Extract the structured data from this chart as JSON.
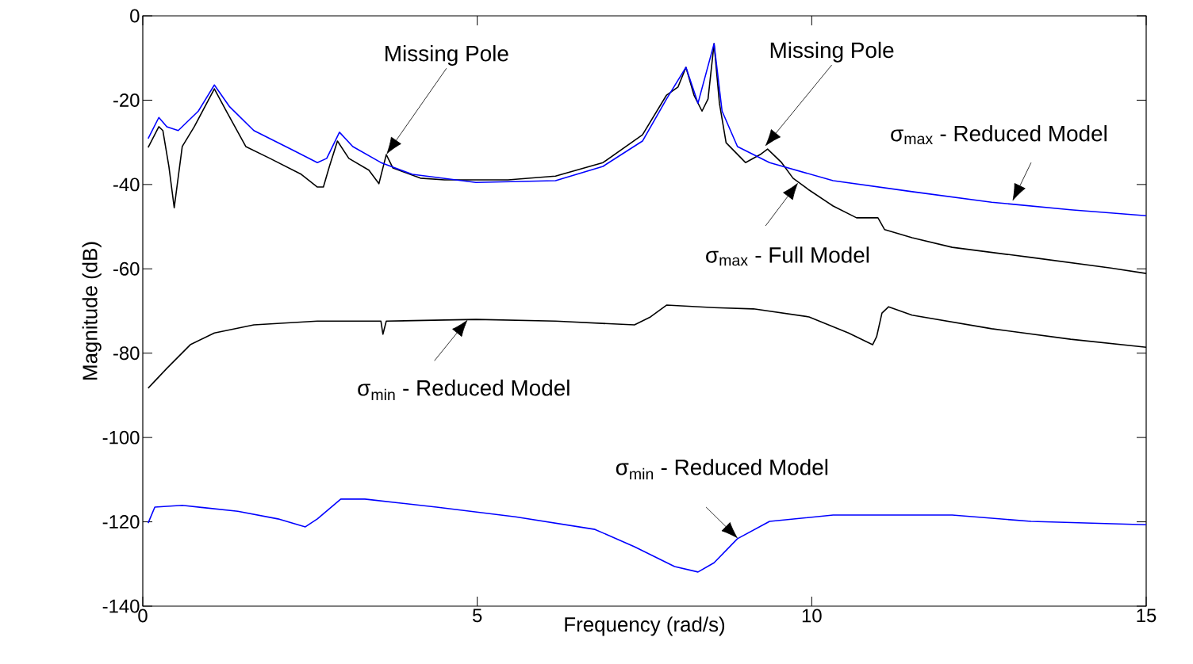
{
  "chart_data": {
    "type": "line",
    "xlabel": "Frequency (rad/s)",
    "ylabel": "Magnitude (dB)",
    "xlim": [
      0,
      15
    ],
    "ylim": [
      -140,
      0
    ],
    "xticks": [
      0,
      5,
      10,
      15
    ],
    "yticks": [
      -140,
      -120,
      -100,
      -80,
      -60,
      -40,
      -20,
      0
    ],
    "grid": false,
    "marker": "none",
    "line_style": "solid",
    "series": [
      {
        "color": "#000000",
        "x": [
          0.08,
          0.24,
          0.3,
          0.39,
          0.47,
          0.59,
          0.77,
          1.07,
          1.25,
          1.54,
          1.9,
          2.37,
          2.61,
          2.7,
          2.79,
          2.91,
          3.08,
          3.38,
          3.53,
          3.64,
          3.74,
          4.15,
          4.51,
          4.98,
          5.46,
          6.17,
          6.88,
          7.47,
          7.83,
          8.0,
          8.12,
          8.24,
          8.36,
          8.45,
          8.54,
          8.62,
          8.72,
          9.01,
          9.23,
          9.34,
          9.55,
          9.72,
          9.96,
          10.32,
          10.67,
          10.99,
          11.09,
          11.5,
          12.1,
          13.28,
          14.47,
          15
        ],
        "values": [
          -31.2,
          -26.3,
          -27.2,
          -35.7,
          -45.5,
          -31,
          -26.3,
          -17.3,
          -22.6,
          -31,
          -33.8,
          -37.6,
          -40.6,
          -40.6,
          -35.7,
          -29.7,
          -33.8,
          -36.6,
          -39.8,
          -32.9,
          -36.1,
          -38.5,
          -38.9,
          -38.9,
          -38.9,
          -38,
          -34.8,
          -28.2,
          -18.8,
          -16.9,
          -12.2,
          -18.8,
          -22.6,
          -19.7,
          -6.6,
          -20.7,
          -30.1,
          -34.8,
          -32.9,
          -31.6,
          -34.8,
          -38.5,
          -41.3,
          -45.1,
          -47.9,
          -47.9,
          -50.7,
          -52.6,
          -54.9,
          -57.3,
          -59.8,
          -61.1
        ]
      },
      {
        "color": "#0000ff",
        "x": [
          0.08,
          0.24,
          0.36,
          0.53,
          0.83,
          1.07,
          1.3,
          1.66,
          2.25,
          2.61,
          2.75,
          2.94,
          3.14,
          3.56,
          4.03,
          4.98,
          6.17,
          6.88,
          7.47,
          7.83,
          8.12,
          8.3,
          8.54,
          8.66,
          8.89,
          9.37,
          10.32,
          11.5,
          12.69,
          13.87,
          15
        ],
        "values": [
          -29.1,
          -24.1,
          -26.3,
          -27.2,
          -22.6,
          -16.4,
          -21.6,
          -27.2,
          -31.9,
          -34.8,
          -33.8,
          -27.6,
          -31,
          -34.8,
          -37.6,
          -39.5,
          -39.1,
          -35.7,
          -29.7,
          -19.7,
          -12.2,
          -20.7,
          -6.6,
          -22.6,
          -31,
          -34.8,
          -39.1,
          -41.7,
          -44.2,
          -46,
          -47.4
        ]
      },
      {
        "color": "#000000",
        "x": [
          0.08,
          0.36,
          0.71,
          1.07,
          1.66,
          2.61,
          3.56,
          3.59,
          3.64,
          4.98,
          6.17,
          7.35,
          7.59,
          7.83,
          8.54,
          9.13,
          9.96,
          10.55,
          10.91,
          10.97,
          11.05,
          11.15,
          11.5,
          12.69,
          13.87,
          15
        ],
        "values": [
          -88.3,
          -83.6,
          -78,
          -75.2,
          -73.3,
          -72.4,
          -72.4,
          -75.5,
          -72.4,
          -72,
          -72.4,
          -73.3,
          -71.4,
          -68.6,
          -69.2,
          -69.5,
          -71.4,
          -75.2,
          -78,
          -76.1,
          -70.5,
          -69,
          -71,
          -74.2,
          -76.7,
          -78.6
        ]
      },
      {
        "color": "#0000ff",
        "x": [
          0.08,
          0.18,
          0.59,
          1.42,
          2.02,
          2.43,
          2.61,
          2.96,
          3.32,
          4.39,
          5.57,
          6.76,
          7.35,
          7.95,
          8.3,
          8.54,
          8.89,
          9.37,
          10.32,
          12.1,
          13.28,
          15
        ],
        "values": [
          -120.3,
          -116.5,
          -116.1,
          -117.5,
          -119.3,
          -121.2,
          -119.3,
          -114.6,
          -114.6,
          -116.5,
          -118.8,
          -121.8,
          -125.9,
          -130.6,
          -131.9,
          -129.7,
          -124,
          -119.9,
          -118.4,
          -118.4,
          -119.9,
          -120.7
        ]
      }
    ],
    "annotations": [
      "Missing Pole",
      "Missing Pole",
      {
        "text": "σ$_{max}$ - Reduced Model",
        "x": 13.0,
        "y": -44
      },
      {
        "text": "σ$_{max}$ - Full Model",
        "x": 9.8,
        "y": -39.5
      },
      {
        "text": "σ$_{min}$ - Reduced Model",
        "x": 4.86,
        "y": -72
      },
      {
        "text": "σ$_{min}$ - Reduced Model",
        "x": 8.9,
        "y": -124
      }
    ]
  }
}
